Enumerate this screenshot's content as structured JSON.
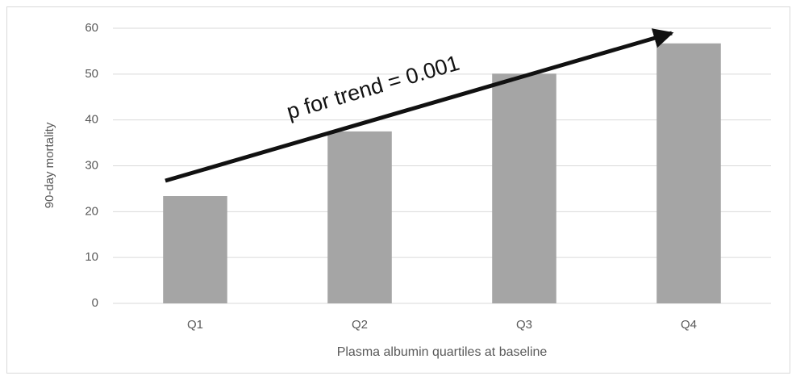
{
  "chart_data": {
    "type": "bar",
    "categories": [
      "Q1",
      "Q2",
      "Q3",
      "Q4"
    ],
    "values": [
      23.4,
      37.5,
      50.1,
      56.7
    ],
    "color": "#a5a5a5",
    "ylim": [
      0,
      60
    ],
    "yticks": [
      0,
      10,
      20,
      30,
      40,
      50,
      60
    ],
    "grid": true,
    "ylabel": "90-day mortality",
    "xlabel": "Plasma albumin quartiles at baseline",
    "annotation": "p for trend = 0.001"
  }
}
